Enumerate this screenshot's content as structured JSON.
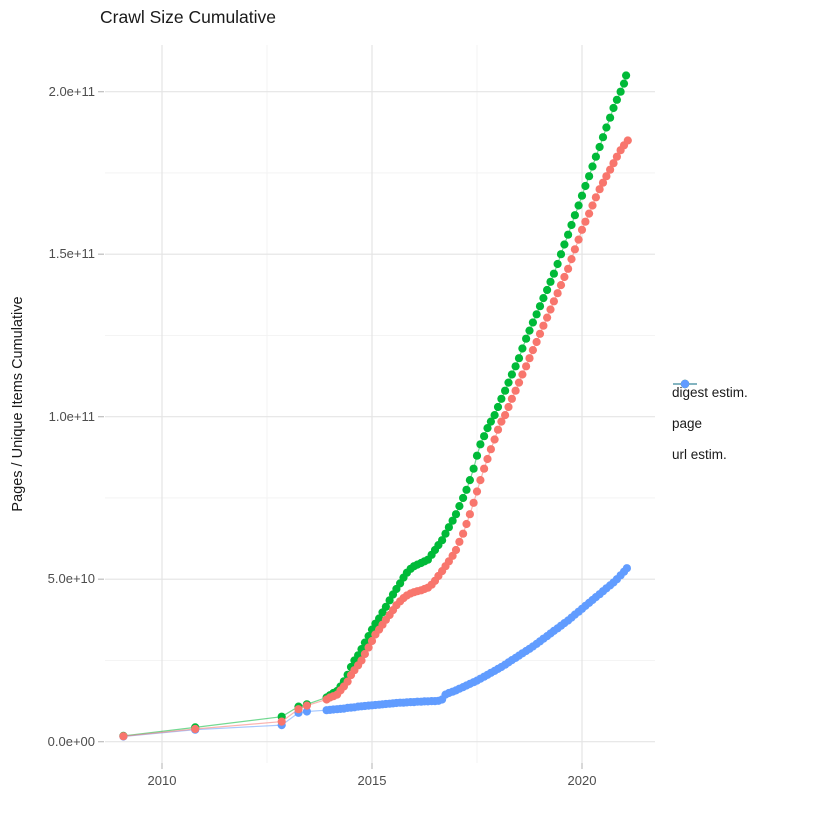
{
  "chart_data": {
    "type": "scatter",
    "title": "Crawl Size Cumulative",
    "xlabel": "",
    "ylabel": "Pages / Unique Items Cumulative",
    "value_unit_multiplier": 1000000000,
    "x_range_years": [
      2008.6,
      2021.75
    ],
    "ylim": [
      0,
      215000000000
    ],
    "grid": "white background, light gray major and minor gridlines",
    "legend_position": "right-center",
    "x_ticks": [
      {
        "value": 2010,
        "label": "2010"
      },
      {
        "value": 2015,
        "label": "2015"
      },
      {
        "value": 2020,
        "label": "2020"
      }
    ],
    "x_minor": [
      2012.5,
      2017.5
    ],
    "y_ticks": [
      {
        "value": 0,
        "label": "0.0e+00"
      },
      {
        "value": 50,
        "label": "5.0e+10"
      },
      {
        "value": 100,
        "label": "1.0e+11"
      },
      {
        "value": 150,
        "label": "1.5e+11"
      },
      {
        "value": 200,
        "label": "2.0e+11"
      }
    ],
    "y_minor": [
      25,
      75,
      125,
      175
    ],
    "series": [
      {
        "name": "digest estim.",
        "color": "#F8766D",
        "points_unit": "billions",
        "points": [
          [
            2009.08,
            1.7
          ],
          [
            2010.79,
            3.9
          ],
          [
            2012.85,
            6.2
          ],
          [
            2013.25,
            10.0
          ],
          [
            2013.45,
            11.1
          ],
          [
            2013.92,
            13.0
          ],
          [
            2014.0,
            13.6
          ],
          [
            2014.08,
            14.0
          ],
          [
            2014.17,
            14.5
          ],
          [
            2014.25,
            15.8
          ],
          [
            2014.33,
            17.0
          ],
          [
            2014.42,
            18.5
          ],
          [
            2014.5,
            20.5
          ],
          [
            2014.58,
            22.0
          ],
          [
            2014.67,
            23.5
          ],
          [
            2014.75,
            25.0
          ],
          [
            2014.83,
            27.0
          ],
          [
            2014.92,
            29.0
          ],
          [
            2015.0,
            31.0
          ],
          [
            2015.08,
            33.0
          ],
          [
            2015.17,
            34.5
          ],
          [
            2015.25,
            36.0
          ],
          [
            2015.33,
            37.5
          ],
          [
            2015.42,
            39.0
          ],
          [
            2015.5,
            40.5
          ],
          [
            2015.58,
            42.0
          ],
          [
            2015.67,
            43.2
          ],
          [
            2015.75,
            44.2
          ],
          [
            2015.83,
            45.0
          ],
          [
            2015.92,
            45.6
          ],
          [
            2016.0,
            46.0
          ],
          [
            2016.08,
            46.3
          ],
          [
            2016.17,
            46.6
          ],
          [
            2016.25,
            47.0
          ],
          [
            2016.33,
            47.4
          ],
          [
            2016.42,
            48.3
          ],
          [
            2016.5,
            49.5
          ],
          [
            2016.58,
            51.0
          ],
          [
            2016.67,
            52.5
          ],
          [
            2016.75,
            54.0
          ],
          [
            2016.83,
            55.5
          ],
          [
            2016.92,
            57.2
          ],
          [
            2017.0,
            59.0
          ],
          [
            2017.08,
            61.5
          ],
          [
            2017.17,
            64.0
          ],
          [
            2017.25,
            67.0
          ],
          [
            2017.33,
            70.0
          ],
          [
            2017.42,
            73.5
          ],
          [
            2017.5,
            77.0
          ],
          [
            2017.58,
            80.5
          ],
          [
            2017.67,
            84.0
          ],
          [
            2017.75,
            87.0
          ],
          [
            2017.83,
            90.0
          ],
          [
            2017.92,
            93.0
          ],
          [
            2018.0,
            96.0
          ],
          [
            2018.08,
            98.5
          ],
          [
            2018.17,
            100.5
          ],
          [
            2018.25,
            103.0
          ],
          [
            2018.33,
            105.5
          ],
          [
            2018.42,
            108.0
          ],
          [
            2018.5,
            110.5
          ],
          [
            2018.58,
            113.0
          ],
          [
            2018.67,
            115.5
          ],
          [
            2018.75,
            118.0
          ],
          [
            2018.83,
            120.5
          ],
          [
            2018.92,
            123.0
          ],
          [
            2019.0,
            125.5
          ],
          [
            2019.08,
            128.0
          ],
          [
            2019.17,
            130.5
          ],
          [
            2019.25,
            133.0
          ],
          [
            2019.33,
            135.5
          ],
          [
            2019.42,
            138.0
          ],
          [
            2019.5,
            140.5
          ],
          [
            2019.58,
            143.0
          ],
          [
            2019.67,
            145.5
          ],
          [
            2019.75,
            148.5
          ],
          [
            2019.83,
            151.5
          ],
          [
            2019.92,
            154.5
          ],
          [
            2020.0,
            157.5
          ],
          [
            2020.08,
            160.0
          ],
          [
            2020.17,
            162.5
          ],
          [
            2020.25,
            165.0
          ],
          [
            2020.33,
            167.5
          ],
          [
            2020.42,
            170.0
          ],
          [
            2020.5,
            172.0
          ],
          [
            2020.58,
            174.0
          ],
          [
            2020.67,
            176.0
          ],
          [
            2020.75,
            178.0
          ],
          [
            2020.83,
            180.0
          ],
          [
            2020.92,
            182.0
          ],
          [
            2021.0,
            183.5
          ],
          [
            2021.09,
            185.0
          ]
        ]
      },
      {
        "name": "page",
        "color": "#00BA38",
        "points_unit": "billions",
        "points": [
          [
            2009.08,
            1.8
          ],
          [
            2010.79,
            4.4
          ],
          [
            2012.85,
            7.7
          ],
          [
            2013.25,
            10.8
          ],
          [
            2013.45,
            11.5
          ],
          [
            2013.92,
            13.6
          ],
          [
            2014.0,
            14.3
          ],
          [
            2014.08,
            15.0
          ],
          [
            2014.17,
            15.6
          ],
          [
            2014.25,
            17.0
          ],
          [
            2014.33,
            18.6
          ],
          [
            2014.42,
            20.6
          ],
          [
            2014.5,
            23.0
          ],
          [
            2014.58,
            25.0
          ],
          [
            2014.67,
            26.6
          ],
          [
            2014.75,
            28.5
          ],
          [
            2014.83,
            30.5
          ],
          [
            2014.92,
            32.5
          ],
          [
            2015.0,
            34.5
          ],
          [
            2015.08,
            36.3
          ],
          [
            2015.17,
            37.9
          ],
          [
            2015.25,
            39.8
          ],
          [
            2015.33,
            41.5
          ],
          [
            2015.42,
            43.5
          ],
          [
            2015.5,
            45.3
          ],
          [
            2015.58,
            47.0
          ],
          [
            2015.67,
            48.7
          ],
          [
            2015.75,
            50.5
          ],
          [
            2015.83,
            52.0
          ],
          [
            2015.92,
            53.2
          ],
          [
            2016.0,
            54.0
          ],
          [
            2016.08,
            54.5
          ],
          [
            2016.17,
            55.0
          ],
          [
            2016.25,
            55.5
          ],
          [
            2016.33,
            56.0
          ],
          [
            2016.42,
            57.5
          ],
          [
            2016.5,
            59.0
          ],
          [
            2016.58,
            60.5
          ],
          [
            2016.67,
            62.0
          ],
          [
            2016.75,
            64.0
          ],
          [
            2016.83,
            66.0
          ],
          [
            2016.92,
            68.0
          ],
          [
            2017.0,
            70.0
          ],
          [
            2017.08,
            72.5
          ],
          [
            2017.17,
            75.0
          ],
          [
            2017.25,
            77.5
          ],
          [
            2017.33,
            80.5
          ],
          [
            2017.42,
            84.0
          ],
          [
            2017.5,
            88.0
          ],
          [
            2017.58,
            91.5
          ],
          [
            2017.67,
            94.0
          ],
          [
            2017.75,
            96.5
          ],
          [
            2017.83,
            98.5
          ],
          [
            2017.92,
            100.5
          ],
          [
            2018.0,
            103.0
          ],
          [
            2018.08,
            105.5
          ],
          [
            2018.17,
            108.0
          ],
          [
            2018.25,
            110.5
          ],
          [
            2018.33,
            113.0
          ],
          [
            2018.42,
            115.5
          ],
          [
            2018.5,
            118.0
          ],
          [
            2018.58,
            121.0
          ],
          [
            2018.67,
            124.0
          ],
          [
            2018.75,
            126.5
          ],
          [
            2018.83,
            129.0
          ],
          [
            2018.92,
            131.5
          ],
          [
            2019.0,
            134.0
          ],
          [
            2019.08,
            136.5
          ],
          [
            2019.17,
            139.0
          ],
          [
            2019.25,
            141.5
          ],
          [
            2019.33,
            144.0
          ],
          [
            2019.42,
            147.0
          ],
          [
            2019.5,
            150.0
          ],
          [
            2019.58,
            153.0
          ],
          [
            2019.67,
            156.0
          ],
          [
            2019.75,
            159.0
          ],
          [
            2019.83,
            162.0
          ],
          [
            2019.92,
            165.0
          ],
          [
            2020.0,
            168.0
          ],
          [
            2020.08,
            171.0
          ],
          [
            2020.17,
            174.0
          ],
          [
            2020.25,
            177.0
          ],
          [
            2020.33,
            180.0
          ],
          [
            2020.42,
            183.0
          ],
          [
            2020.5,
            186.0
          ],
          [
            2020.58,
            189.0
          ],
          [
            2020.67,
            192.0
          ],
          [
            2020.75,
            195.0
          ],
          [
            2020.83,
            197.5
          ],
          [
            2020.92,
            200.0
          ],
          [
            2021.0,
            202.5
          ],
          [
            2021.05,
            205.0
          ]
        ]
      },
      {
        "name": "url estim.",
        "color": "#619CFF",
        "points_unit": "billions",
        "points": [
          [
            2009.08,
            1.6
          ],
          [
            2010.79,
            3.7
          ],
          [
            2012.85,
            5.1
          ],
          [
            2013.25,
            8.9
          ],
          [
            2013.45,
            9.3
          ],
          [
            2013.92,
            9.7
          ],
          [
            2014.0,
            9.8
          ],
          [
            2014.08,
            9.9
          ],
          [
            2014.17,
            10.0
          ],
          [
            2014.25,
            10.1
          ],
          [
            2014.33,
            10.2
          ],
          [
            2014.42,
            10.4
          ],
          [
            2014.5,
            10.5
          ],
          [
            2014.58,
            10.6
          ],
          [
            2014.67,
            10.8
          ],
          [
            2014.75,
            10.9
          ],
          [
            2014.83,
            11.0
          ],
          [
            2014.92,
            11.1
          ],
          [
            2015.0,
            11.2
          ],
          [
            2015.08,
            11.3
          ],
          [
            2015.17,
            11.4
          ],
          [
            2015.25,
            11.5
          ],
          [
            2015.33,
            11.6
          ],
          [
            2015.42,
            11.7
          ],
          [
            2015.5,
            11.8
          ],
          [
            2015.58,
            11.9
          ],
          [
            2015.67,
            12.0
          ],
          [
            2015.75,
            12.0
          ],
          [
            2015.83,
            12.1
          ],
          [
            2015.92,
            12.2
          ],
          [
            2016.0,
            12.2
          ],
          [
            2016.08,
            12.3
          ],
          [
            2016.17,
            12.3
          ],
          [
            2016.25,
            12.4
          ],
          [
            2016.33,
            12.4
          ],
          [
            2016.42,
            12.5
          ],
          [
            2016.5,
            12.5
          ],
          [
            2016.58,
            12.6
          ],
          [
            2016.67,
            13.0
          ],
          [
            2016.75,
            14.5
          ],
          [
            2016.83,
            15.0
          ],
          [
            2016.92,
            15.4
          ],
          [
            2017.0,
            15.8
          ],
          [
            2017.08,
            16.3
          ],
          [
            2017.17,
            16.8
          ],
          [
            2017.25,
            17.3
          ],
          [
            2017.33,
            17.8
          ],
          [
            2017.42,
            18.3
          ],
          [
            2017.5,
            18.8
          ],
          [
            2017.58,
            19.4
          ],
          [
            2017.67,
            20.0
          ],
          [
            2017.75,
            20.6
          ],
          [
            2017.83,
            21.2
          ],
          [
            2017.92,
            21.8
          ],
          [
            2018.0,
            22.4
          ],
          [
            2018.08,
            23.0
          ],
          [
            2018.17,
            23.7
          ],
          [
            2018.25,
            24.4
          ],
          [
            2018.33,
            25.1
          ],
          [
            2018.42,
            25.8
          ],
          [
            2018.5,
            26.5
          ],
          [
            2018.58,
            27.2
          ],
          [
            2018.67,
            27.9
          ],
          [
            2018.75,
            28.6
          ],
          [
            2018.83,
            29.3
          ],
          [
            2018.92,
            30.1
          ],
          [
            2019.0,
            30.9
          ],
          [
            2019.08,
            31.7
          ],
          [
            2019.17,
            32.5
          ],
          [
            2019.25,
            33.3
          ],
          [
            2019.33,
            34.1
          ],
          [
            2019.42,
            34.9
          ],
          [
            2019.5,
            35.7
          ],
          [
            2019.58,
            36.5
          ],
          [
            2019.67,
            37.3
          ],
          [
            2019.75,
            38.2
          ],
          [
            2019.83,
            39.1
          ],
          [
            2019.92,
            40.0
          ],
          [
            2020.0,
            40.9
          ],
          [
            2020.08,
            41.8
          ],
          [
            2020.17,
            42.7
          ],
          [
            2020.25,
            43.6
          ],
          [
            2020.33,
            44.5
          ],
          [
            2020.42,
            45.4
          ],
          [
            2020.5,
            46.3
          ],
          [
            2020.58,
            47.2
          ],
          [
            2020.67,
            48.1
          ],
          [
            2020.75,
            49.0
          ],
          [
            2020.83,
            50.0
          ],
          [
            2020.92,
            51.2
          ],
          [
            2021.0,
            52.3
          ],
          [
            2021.07,
            53.4
          ]
        ]
      }
    ]
  },
  "colors": {
    "background": "#FFFFFF",
    "grid_major": "#E4E4E4",
    "grid_minor": "#F2F2F2",
    "tick_mark": "#BDBDBD",
    "axis_text": "#4D4D4D",
    "title_text": "#1A1A1A"
  }
}
